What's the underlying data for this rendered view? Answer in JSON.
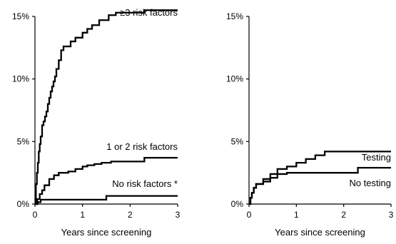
{
  "chart_data": [
    {
      "type": "line",
      "step": true,
      "xlabel": "Years since screening",
      "ylabel": "",
      "xlim": [
        0,
        3
      ],
      "ylim": [
        0,
        15
      ],
      "x_ticks": [
        0,
        1,
        2,
        3
      ],
      "x_tick_labels": [
        "0",
        "1",
        "2",
        "3"
      ],
      "y_ticks": [
        0,
        5,
        10,
        15
      ],
      "y_tick_labels": [
        "0%",
        "5%",
        "10%",
        "15%"
      ],
      "series": [
        {
          "name": "≥3 risk factors",
          "x": [
            0,
            0.02,
            0.04,
            0.06,
            0.08,
            0.1,
            0.12,
            0.15,
            0.18,
            0.21,
            0.24,
            0.27,
            0.3,
            0.33,
            0.36,
            0.39,
            0.42,
            0.45,
            0.5,
            0.55,
            0.6,
            0.75,
            0.85,
            1.0,
            1.1,
            1.2,
            1.35,
            1.55,
            1.7,
            2.3,
            3.0
          ],
          "y": [
            0,
            1.6,
            2.5,
            3.3,
            4.2,
            4.8,
            5.4,
            6.3,
            6.6,
            7.0,
            7.4,
            8.0,
            8.5,
            9.0,
            9.4,
            9.8,
            10.2,
            10.8,
            11.5,
            12.3,
            12.6,
            13.0,
            13.3,
            13.7,
            14.0,
            14.3,
            14.7,
            15.1,
            15.3,
            15.5,
            15.5
          ]
        },
        {
          "name": "1 or 2 risk factors",
          "x": [
            0,
            0.05,
            0.1,
            0.15,
            0.2,
            0.3,
            0.4,
            0.5,
            0.7,
            0.85,
            1.0,
            1.1,
            1.25,
            1.4,
            1.6,
            2.3,
            3.0
          ],
          "y": [
            0,
            0.4,
            0.8,
            1.1,
            1.5,
            2.0,
            2.3,
            2.5,
            2.6,
            2.8,
            3.0,
            3.1,
            3.2,
            3.3,
            3.4,
            3.7,
            3.7
          ]
        },
        {
          "name": "No risk factors *",
          "x": [
            0,
            0.06,
            0.12,
            1.5,
            3.0
          ],
          "y": [
            0,
            0.15,
            0.35,
            0.65,
            0.65
          ]
        }
      ]
    },
    {
      "type": "line",
      "step": true,
      "xlabel": "Years since screening",
      "ylabel": "",
      "xlim": [
        0,
        3
      ],
      "ylim": [
        0,
        15
      ],
      "x_ticks": [
        0,
        1,
        2,
        3
      ],
      "x_tick_labels": [
        "0",
        "1",
        "2",
        "3"
      ],
      "y_ticks": [
        0,
        5,
        10,
        15
      ],
      "y_tick_labels": [
        "0%",
        "5%",
        "10%",
        "15%"
      ],
      "series": [
        {
          "name": "Testing",
          "x": [
            0,
            0.03,
            0.06,
            0.1,
            0.15,
            0.3,
            0.45,
            0.6,
            0.8,
            1.0,
            1.2,
            1.4,
            1.6,
            3.0
          ],
          "y": [
            0,
            0.5,
            0.9,
            1.3,
            1.6,
            2.0,
            2.4,
            2.8,
            3.0,
            3.3,
            3.6,
            3.9,
            4.2,
            4.2
          ]
        },
        {
          "name": "No testing",
          "x": [
            0,
            0.03,
            0.06,
            0.1,
            0.15,
            0.3,
            0.45,
            0.6,
            0.8,
            1.0,
            1.2,
            1.4,
            2.3,
            3.0
          ],
          "y": [
            0,
            0.5,
            0.9,
            1.3,
            1.6,
            1.8,
            2.1,
            2.4,
            2.5,
            2.5,
            2.5,
            2.5,
            2.9,
            2.9
          ]
        }
      ]
    }
  ],
  "annotations": [
    {
      "chart": 0,
      "series": 0,
      "text": "≥3 risk factors"
    },
    {
      "chart": 0,
      "series": 1,
      "text": "1 or 2 risk factors"
    },
    {
      "chart": 0,
      "series": 2,
      "text": "No risk factors *"
    },
    {
      "chart": 1,
      "series": 0,
      "text": "Testing"
    },
    {
      "chart": 1,
      "series": 1,
      "text": "No testing"
    }
  ]
}
